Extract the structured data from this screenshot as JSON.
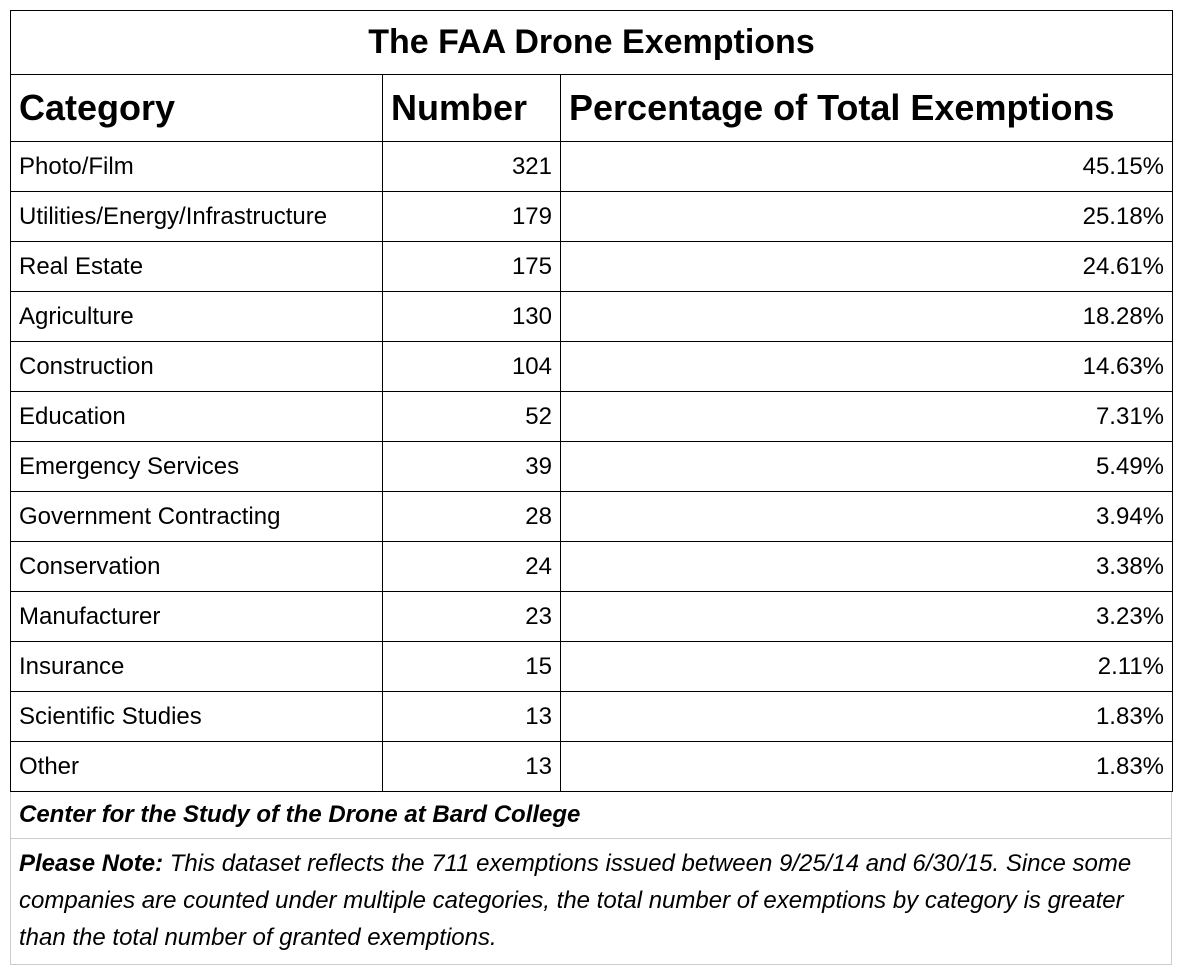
{
  "chart_data": {
    "type": "table",
    "title": "The FAA Drone Exemptions",
    "columns": [
      "Category",
      "Number",
      "Percentage of Total Exemptions"
    ],
    "rows": [
      {
        "category": "Photo/Film",
        "number": "321",
        "percentage": "45.15%"
      },
      {
        "category": "Utilities/Energy/Infrastructure",
        "number": "179",
        "percentage": "25.18%"
      },
      {
        "category": "Real Estate",
        "number": "175",
        "percentage": "24.61%"
      },
      {
        "category": "Agriculture",
        "number": "130",
        "percentage": "18.28%"
      },
      {
        "category": "Construction",
        "number": "104",
        "percentage": "14.63%"
      },
      {
        "category": "Education",
        "number": "52",
        "percentage": "7.31%"
      },
      {
        "category": "Emergency Services",
        "number": "39",
        "percentage": "5.49%"
      },
      {
        "category": "Government Contracting",
        "number": "28",
        "percentage": "3.94%"
      },
      {
        "category": "Conservation",
        "number": "24",
        "percentage": "3.38%"
      },
      {
        "category": "Manufacturer",
        "number": "23",
        "percentage": "3.23%"
      },
      {
        "category": "Insurance",
        "number": "15",
        "percentage": "2.11%"
      },
      {
        "category": "Scientific Studies",
        "number": "13",
        "percentage": "1.83%"
      },
      {
        "category": "Other",
        "number": "13",
        "percentage": "1.83%"
      }
    ]
  },
  "footer": {
    "source": "Center for the Study of the Drone at Bard College",
    "note_label": "Please Note:",
    "note_text": " This dataset reflects the 711 exemptions issued between 9/25/14 and 6/30/15. Since some companies are counted under multiple categories, the total number of exemptions by category is greater than the total number of granted exemptions."
  }
}
